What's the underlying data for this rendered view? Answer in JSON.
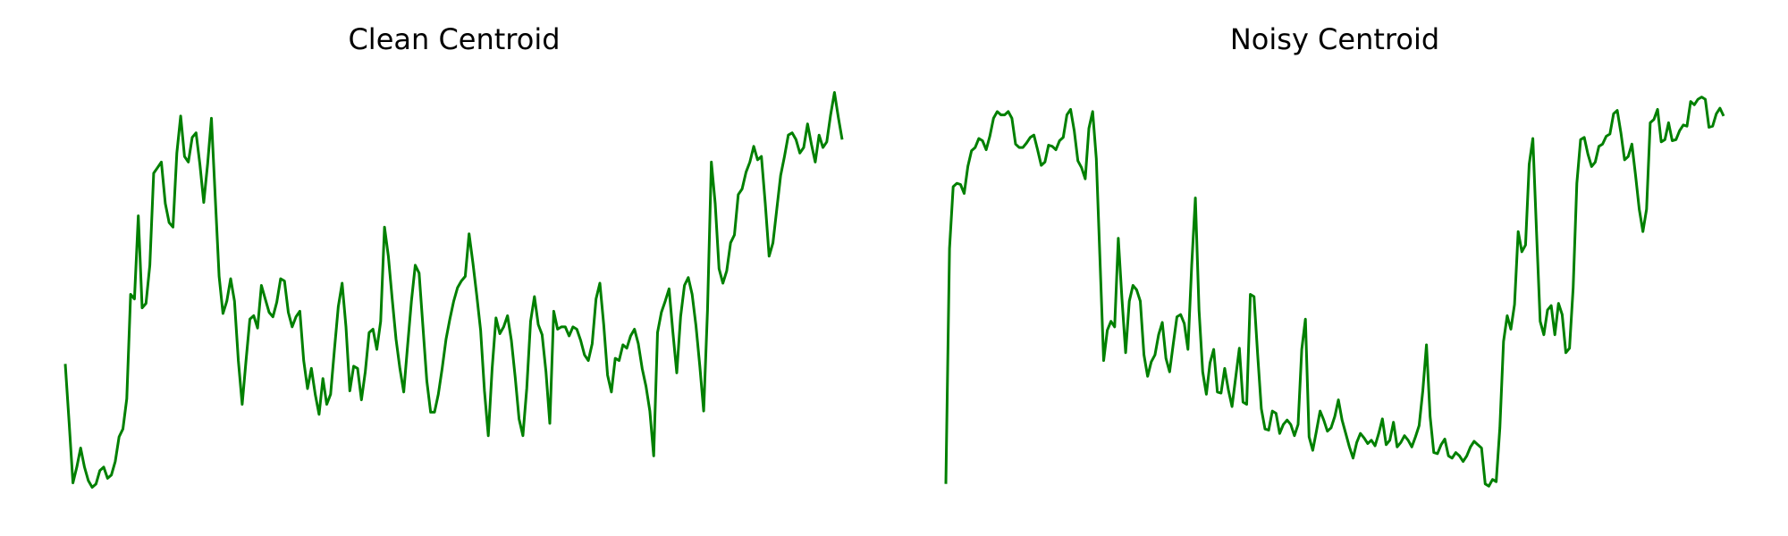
{
  "chart_data": [
    {
      "type": "line",
      "title": "Clean Centroid",
      "color": "#008000",
      "ylim": [
        20,
        380
      ],
      "values": [
        132,
        80,
        26,
        40,
        57,
        40,
        28,
        22,
        25,
        37,
        40,
        30,
        33,
        45,
        67,
        74,
        101,
        194,
        190,
        264,
        182,
        186,
        220,
        302,
        307,
        312,
        275,
        258,
        254,
        320,
        353,
        317,
        312,
        334,
        338,
        310,
        276,
        310,
        351,
        280,
        210,
        177,
        188,
        208,
        188,
        135,
        96,
        135,
        172,
        175,
        164,
        202,
        190,
        178,
        174,
        187,
        208,
        206,
        178,
        165,
        174,
        179,
        135,
        110,
        128,
        105,
        87,
        119,
        96,
        105,
        145,
        183,
        204,
        165,
        108,
        130,
        128,
        100,
        125,
        160,
        163,
        145,
        170,
        254,
        228,
        190,
        154,
        128,
        107,
        148,
        188,
        220,
        213,
        165,
        117,
        89,
        89,
        105,
        128,
        154,
        172,
        188,
        200,
        206,
        210,
        248,
        222,
        193,
        162,
        108,
        68,
        128,
        173,
        159,
        165,
        175,
        153,
        120,
        83,
        68,
        110,
        170,
        192,
        167,
        158,
        125,
        79,
        179,
        163,
        165,
        165,
        157,
        165,
        163,
        153,
        140,
        135,
        150,
        190,
        204,
        167,
        122,
        107,
        137,
        135,
        149,
        146,
        157,
        163,
        150,
        128,
        112,
        90,
        50,
        160,
        178,
        188,
        199,
        160,
        124,
        174,
        202,
        209,
        194,
        166,
        130,
        90,
        180,
        312,
        275,
        217,
        204,
        215,
        240,
        247,
        283,
        288,
        303,
        312,
        326,
        314,
        317,
        275,
        228,
        240,
        270,
        300,
        317,
        336,
        338,
        332,
        320,
        325,
        346,
        328,
        312,
        336,
        325,
        330,
        354,
        374,
        352,
        332
      ]
    },
    {
      "type": "line",
      "title": "Noisy Centroid",
      "color": "#008000",
      "ylim": [
        20,
        380
      ],
      "values": [
        25,
        235,
        290,
        293,
        292,
        284,
        308,
        322,
        325,
        333,
        331,
        323,
        335,
        351,
        357,
        354,
        354,
        357,
        351,
        328,
        325,
        325,
        329,
        334,
        336,
        323,
        309,
        312,
        327,
        326,
        323,
        331,
        334,
        354,
        359,
        340,
        313,
        307,
        297,
        342,
        357,
        315,
        225,
        135,
        162,
        170,
        165,
        244,
        190,
        142,
        188,
        202,
        198,
        188,
        140,
        121,
        134,
        140,
        158,
        169,
        137,
        125,
        150,
        174,
        176,
        168,
        145,
        220,
        280,
        180,
        125,
        105,
        133,
        145,
        107,
        106,
        128,
        109,
        94,
        120,
        146,
        98,
        96,
        194,
        192,
        140,
        92,
        74,
        73,
        90,
        88,
        70,
        78,
        82,
        78,
        68,
        78,
        145,
        172,
        67,
        55,
        72,
        90,
        82,
        72,
        75,
        85,
        100,
        82,
        70,
        58,
        48,
        62,
        70,
        66,
        61,
        64,
        59,
        70,
        83,
        60,
        64,
        80,
        58,
        62,
        68,
        64,
        58,
        67,
        77,
        108,
        149,
        85,
        53,
        52,
        60,
        65,
        50,
        48,
        53,
        50,
        45,
        50,
        58,
        63,
        60,
        57,
        25,
        23,
        29,
        27,
        75,
        152,
        175,
        163,
        185,
        250,
        232,
        238,
        310,
        333,
        250,
        170,
        158,
        180,
        184,
        158,
        186,
        176,
        142,
        146,
        200,
        293,
        332,
        334,
        319,
        308,
        312,
        326,
        328,
        335,
        337,
        355,
        358,
        338,
        314,
        317,
        328,
        300,
        270,
        250,
        270,
        347,
        350,
        359,
        330,
        332,
        347,
        331,
        332,
        340,
        345,
        344,
        366,
        363,
        368,
        370,
        368,
        343,
        344,
        355,
        360,
        353
      ]
    }
  ]
}
